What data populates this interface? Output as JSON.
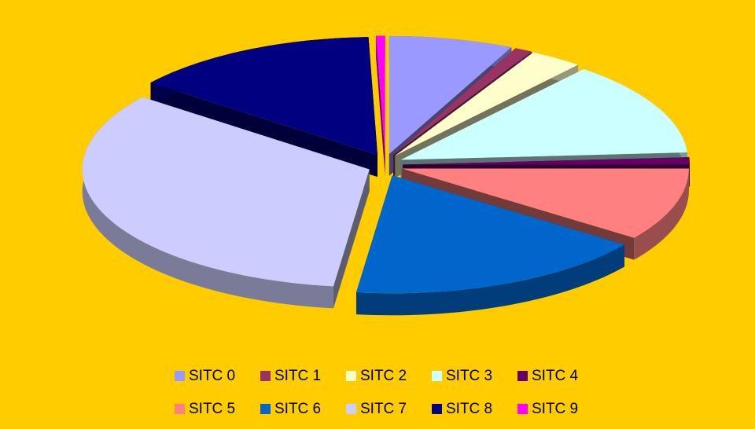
{
  "chart_data": {
    "type": "pie",
    "categories": [
      "SITC 0",
      "SITC 1",
      "SITC 2",
      "SITC 3",
      "SITC 4",
      "SITC 5",
      "SITC 6",
      "SITC 7",
      "SITC 8",
      "SITC 9"
    ],
    "values": [
      7,
      1,
      3,
      13,
      1,
      10,
      17,
      33.5,
      14,
      0.5
    ],
    "colors": [
      "#9999ff",
      "#993366",
      "#ffffcc",
      "#ccffff",
      "#660066",
      "#ff8080",
      "#0066cc",
      "#ccccff",
      "#000080",
      "#ff00ff"
    ],
    "legend": "bottom"
  }
}
